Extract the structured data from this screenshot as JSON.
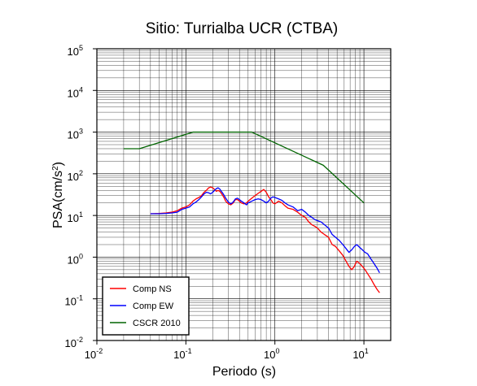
{
  "chart_data": {
    "type": "line",
    "title": "Sitio: Turrialba UCR (CTBA)",
    "xlabel": "Periodo (s)",
    "ylabel_base": "PSA(cm/s",
    "ylabel_sup": "2",
    "ylabel_close": ")",
    "x_scale": "log",
    "y_scale": "log",
    "xlim": [
      0.01,
      20
    ],
    "ylim": [
      0.01,
      100000
    ],
    "grid": true,
    "legend_position": "bottom-left",
    "x_ticks": [
      {
        "value": 0.01,
        "base": "10",
        "exp": "-2"
      },
      {
        "value": 0.1,
        "base": "10",
        "exp": "-1"
      },
      {
        "value": 1,
        "base": "10",
        "exp": "0"
      },
      {
        "value": 10,
        "base": "10",
        "exp": "1"
      }
    ],
    "y_ticks": [
      {
        "value": 0.01,
        "base": "10",
        "exp": "-2"
      },
      {
        "value": 0.1,
        "base": "10",
        "exp": "-1"
      },
      {
        "value": 1,
        "base": "10",
        "exp": "0"
      },
      {
        "value": 10,
        "base": "10",
        "exp": "1"
      },
      {
        "value": 100,
        "base": "10",
        "exp": "2"
      },
      {
        "value": 1000,
        "base": "10",
        "exp": "3"
      },
      {
        "value": 10000,
        "base": "10",
        "exp": "4"
      },
      {
        "value": 100000,
        "base": "10",
        "exp": "5"
      }
    ],
    "series": [
      {
        "name": "Comp NS",
        "color": "#ff0000",
        "points": [
          [
            0.04,
            11
          ],
          [
            0.05,
            11.2
          ],
          [
            0.06,
            11.5
          ],
          [
            0.07,
            12
          ],
          [
            0.08,
            13
          ],
          [
            0.09,
            15
          ],
          [
            0.1,
            16
          ],
          [
            0.11,
            18
          ],
          [
            0.12,
            22
          ],
          [
            0.13,
            25
          ],
          [
            0.14,
            27
          ],
          [
            0.15,
            30
          ],
          [
            0.16,
            36
          ],
          [
            0.17,
            40
          ],
          [
            0.18,
            46
          ],
          [
            0.19,
            48
          ],
          [
            0.2,
            46
          ],
          [
            0.21,
            42
          ],
          [
            0.22,
            38
          ],
          [
            0.23,
            40
          ],
          [
            0.24,
            38
          ],
          [
            0.25,
            34
          ],
          [
            0.26,
            30
          ],
          [
            0.27,
            26
          ],
          [
            0.28,
            22
          ],
          [
            0.3,
            19
          ],
          [
            0.32,
            18
          ],
          [
            0.34,
            20
          ],
          [
            0.36,
            24
          ],
          [
            0.38,
            24
          ],
          [
            0.4,
            22
          ],
          [
            0.42,
            20
          ],
          [
            0.45,
            19
          ],
          [
            0.48,
            20
          ],
          [
            0.5,
            22
          ],
          [
            0.55,
            26
          ],
          [
            0.6,
            30
          ],
          [
            0.65,
            34
          ],
          [
            0.7,
            38
          ],
          [
            0.75,
            42
          ],
          [
            0.8,
            36
          ],
          [
            0.85,
            28
          ],
          [
            0.9,
            24
          ],
          [
            0.95,
            20
          ],
          [
            1.0,
            19
          ],
          [
            1.1,
            22
          ],
          [
            1.2,
            20
          ],
          [
            1.3,
            17
          ],
          [
            1.4,
            15
          ],
          [
            1.6,
            14
          ],
          [
            1.8,
            12
          ],
          [
            2.0,
            10
          ],
          [
            2.2,
            9
          ],
          [
            2.4,
            7
          ],
          [
            2.6,
            6
          ],
          [
            2.8,
            5.5
          ],
          [
            3.0,
            5
          ],
          [
            3.3,
            4
          ],
          [
            3.6,
            3.5
          ],
          [
            4.0,
            3
          ],
          [
            4.4,
            2
          ],
          [
            4.8,
            1.8
          ],
          [
            5.3,
            1.4
          ],
          [
            5.8,
            1.1
          ],
          [
            6.3,
            0.8
          ],
          [
            6.8,
            0.6
          ],
          [
            7.3,
            0.5
          ],
          [
            7.8,
            0.6
          ],
          [
            8.3,
            0.8
          ],
          [
            9.0,
            0.7
          ],
          [
            9.6,
            0.6
          ],
          [
            10.3,
            0.5
          ],
          [
            11.0,
            0.4
          ],
          [
            12.0,
            0.3
          ],
          [
            13.0,
            0.22
          ],
          [
            14.0,
            0.17
          ],
          [
            15.0,
            0.14
          ]
        ]
      },
      {
        "name": "Comp EW",
        "color": "#0000ff",
        "points": [
          [
            0.04,
            11
          ],
          [
            0.05,
            11
          ],
          [
            0.06,
            11.2
          ],
          [
            0.07,
            11.5
          ],
          [
            0.08,
            12
          ],
          [
            0.09,
            14
          ],
          [
            0.1,
            15
          ],
          [
            0.11,
            16
          ],
          [
            0.12,
            19
          ],
          [
            0.13,
            21
          ],
          [
            0.14,
            24
          ],
          [
            0.15,
            28
          ],
          [
            0.16,
            33
          ],
          [
            0.17,
            36
          ],
          [
            0.18,
            35
          ],
          [
            0.19,
            33
          ],
          [
            0.2,
            36
          ],
          [
            0.21,
            40
          ],
          [
            0.22,
            44
          ],
          [
            0.23,
            46
          ],
          [
            0.24,
            43
          ],
          [
            0.25,
            38
          ],
          [
            0.26,
            34
          ],
          [
            0.27,
            30
          ],
          [
            0.28,
            26
          ],
          [
            0.3,
            21
          ],
          [
            0.32,
            19
          ],
          [
            0.34,
            21
          ],
          [
            0.36,
            25
          ],
          [
            0.38,
            26
          ],
          [
            0.4,
            24
          ],
          [
            0.42,
            22
          ],
          [
            0.45,
            20
          ],
          [
            0.48,
            18
          ],
          [
            0.5,
            20
          ],
          [
            0.55,
            22
          ],
          [
            0.6,
            24
          ],
          [
            0.65,
            25
          ],
          [
            0.7,
            24
          ],
          [
            0.75,
            22
          ],
          [
            0.8,
            20
          ],
          [
            0.85,
            22
          ],
          [
            0.9,
            26
          ],
          [
            0.95,
            28
          ],
          [
            1.0,
            27
          ],
          [
            1.1,
            25
          ],
          [
            1.2,
            23
          ],
          [
            1.3,
            20
          ],
          [
            1.4,
            18
          ],
          [
            1.6,
            16
          ],
          [
            1.8,
            13
          ],
          [
            2.0,
            14
          ],
          [
            2.2,
            12
          ],
          [
            2.4,
            10
          ],
          [
            2.6,
            9
          ],
          [
            2.8,
            8
          ],
          [
            3.0,
            7.5
          ],
          [
            3.3,
            7
          ],
          [
            3.6,
            6
          ],
          [
            4.0,
            5
          ],
          [
            4.4,
            3.5
          ],
          [
            4.8,
            3
          ],
          [
            5.3,
            2.5
          ],
          [
            5.8,
            2
          ],
          [
            6.3,
            1.6
          ],
          [
            6.8,
            1.3
          ],
          [
            7.3,
            1.5
          ],
          [
            7.8,
            1.8
          ],
          [
            8.3,
            2.0
          ],
          [
            9.0,
            1.7
          ],
          [
            9.6,
            1.5
          ],
          [
            10.3,
            1.3
          ],
          [
            11.0,
            1.2
          ],
          [
            12.0,
            0.9
          ],
          [
            13.0,
            0.7
          ],
          [
            14.0,
            0.55
          ],
          [
            15.0,
            0.42
          ]
        ]
      },
      {
        "name": "CSCR 2010",
        "color": "#006400",
        "points": [
          [
            0.02,
            400
          ],
          [
            0.03,
            400
          ],
          [
            0.12,
            1000
          ],
          [
            0.55,
            1000
          ],
          [
            3.5,
            160
          ],
          [
            10,
            20
          ]
        ]
      }
    ]
  }
}
